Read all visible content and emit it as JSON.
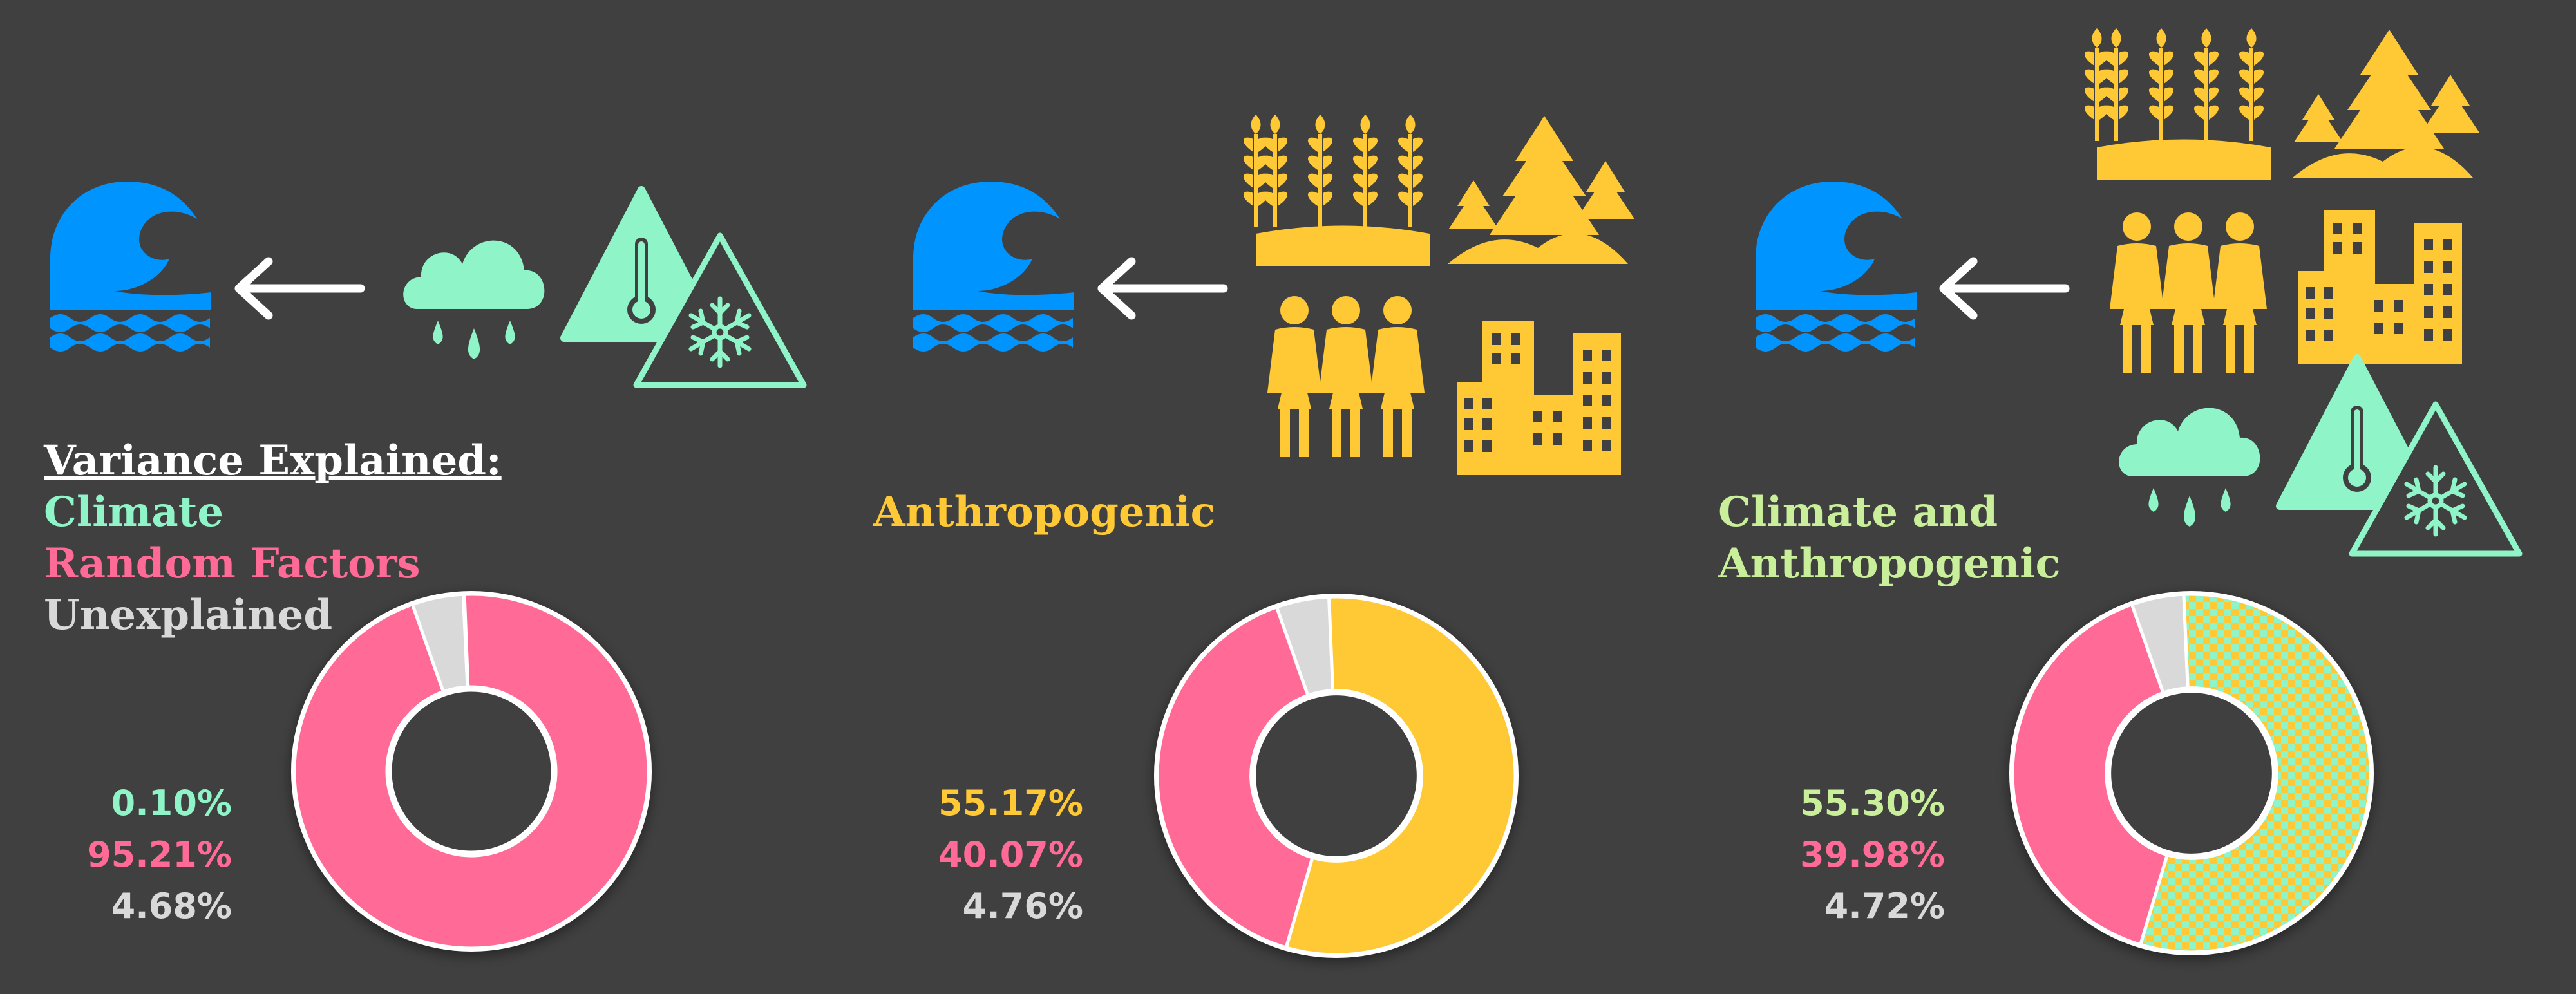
{
  "legend": {
    "title": "Variance Explained:",
    "climate": "Climate",
    "random": "Random Factors",
    "unexplained": "Unexplained"
  },
  "panels": [
    {
      "title": "",
      "drivers": [
        "climate"
      ]
    },
    {
      "title": "Anthropogenic",
      "drivers": [
        "anthropogenic"
      ]
    },
    {
      "title": "Climate and Anthropogenic",
      "drivers": [
        "anthropogenic",
        "climate"
      ]
    }
  ],
  "colors": {
    "background": "#404040",
    "climate": "#8ff5c9",
    "random": "#ff6b96",
    "unexplained": "#d9d9d9",
    "anthropogenic": "#ffc936",
    "flood": "#0094ff",
    "arrow": "#ffffff"
  },
  "icons": [
    "flood-wave-icon",
    "arrow-left-icon",
    "rain-cloud-icon",
    "temperature-warning-icon",
    "snow-warning-icon",
    "wheat-field-icon",
    "forest-icon",
    "people-icon",
    "buildings-icon"
  ],
  "chart_data": [
    {
      "type": "pie",
      "donut": true,
      "categories": [
        "Climate",
        "Random Factors",
        "Unexplained"
      ],
      "values": [
        0.1,
        95.21,
        4.68
      ],
      "labels": [
        "0.10%",
        "95.21%",
        "4.68%"
      ],
      "colors": [
        "#8ff5c9",
        "#ff6b96",
        "#d9d9d9"
      ]
    },
    {
      "type": "pie",
      "donut": true,
      "categories": [
        "Anthropogenic",
        "Random Factors",
        "Unexplained"
      ],
      "values": [
        55.17,
        40.07,
        4.76
      ],
      "labels": [
        "55.17%",
        "40.07%",
        "4.76%"
      ],
      "colors": [
        "#ffc936",
        "#ff6b96",
        "#d9d9d9"
      ]
    },
    {
      "type": "pie",
      "donut": true,
      "categories": [
        "Climate and Anthropogenic",
        "Random Factors",
        "Unexplained"
      ],
      "values": [
        55.3,
        39.98,
        4.72
      ],
      "labels": [
        "55.30%",
        "39.98%",
        "4.72%"
      ],
      "colors": [
        "pattern-climate-anthropogenic",
        "#ff6b96",
        "#d9d9d9"
      ]
    }
  ]
}
